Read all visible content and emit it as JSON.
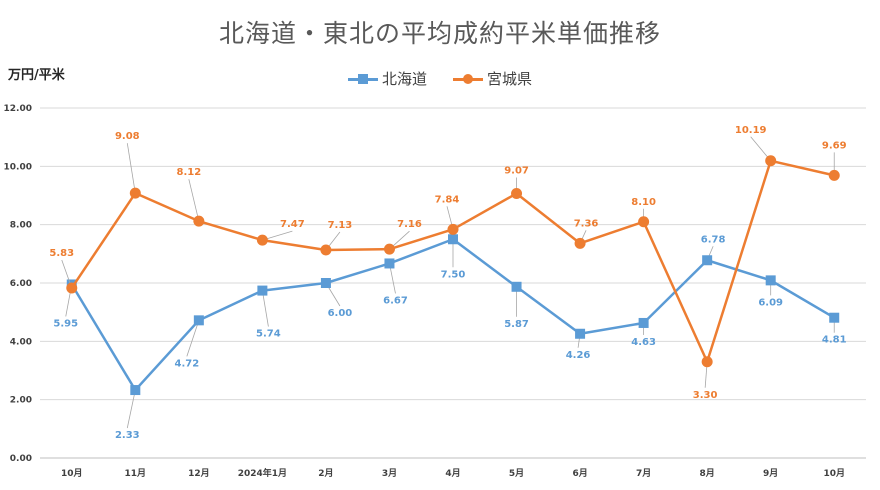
{
  "chart_data": {
    "type": "line",
    "title": "北海道・東北の平均成約平米単価推移",
    "ylabel": "万円/平米",
    "xlabel": "",
    "categories": [
      "10月",
      "11月",
      "12月",
      "2024年1月",
      "2月",
      "3月",
      "4月",
      "5月",
      "6月",
      "7月",
      "8月",
      "9月",
      "10月"
    ],
    "ylim": [
      0,
      12
    ],
    "yticks": [
      "0.00",
      "2.00",
      "4.00",
      "6.00",
      "8.00",
      "10.00",
      "12.00"
    ],
    "grid": true,
    "legend_position": "top",
    "series": [
      {
        "name": "北海道",
        "color": "#5B9BD5",
        "marker": "square",
        "values": [
          5.95,
          2.33,
          4.72,
          5.74,
          6.0,
          6.67,
          7.5,
          5.87,
          4.26,
          4.63,
          6.78,
          6.09,
          4.81
        ],
        "labels": [
          "5.95",
          "2.33",
          "4.72",
          "5.74",
          "6.00",
          "6.67",
          "7.50",
          "5.87",
          "4.26",
          "4.63",
          "6.78",
          "6.09",
          "4.81"
        ]
      },
      {
        "name": "宮城県",
        "color": "#ED7D31",
        "marker": "circle",
        "values": [
          5.83,
          9.08,
          8.12,
          7.47,
          7.13,
          7.16,
          7.84,
          9.07,
          7.36,
          8.1,
          3.3,
          10.19,
          9.69
        ],
        "labels": [
          "5.83",
          "9.08",
          "8.12",
          "7.47",
          "7.13",
          "7.16",
          "7.84",
          "9.07",
          "7.36",
          "8.10",
          "3.30",
          "10.19",
          "9.69"
        ]
      }
    ]
  }
}
